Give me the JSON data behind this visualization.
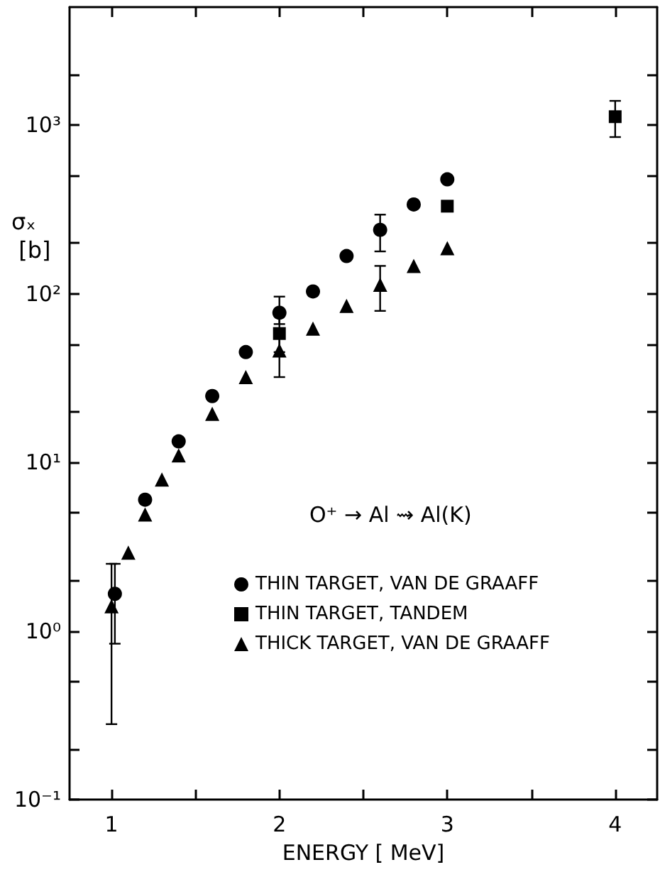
{
  "chart_data": {
    "type": "scatter",
    "xlabel": "ENERGY [ MeV]",
    "ylabel": "σₓ [b]",
    "annotations": [
      "O⁺ → Al ⇝ Al(K)"
    ],
    "log": "y",
    "grid": false,
    "legend": "right",
    "xlim": [
      0.75,
      4.25
    ],
    "xticks": [
      1,
      {
        "value": 1.5,
        "label": null
      },
      2,
      {
        "value": 2.5,
        "label": null
      },
      3,
      {
        "value": 3.5,
        "label": null
      },
      4
    ],
    "ylim": [
      0.1,
      5000
    ],
    "yticks": [
      {
        "value": 0.1,
        "label": "10⁻¹"
      },
      {
        "value": 0.2,
        "label": null
      },
      {
        "value": 0.5,
        "label": null
      },
      {
        "value": 1,
        "label": "10⁰"
      },
      {
        "value": 2,
        "label": null
      },
      {
        "value": 5,
        "label": null
      },
      {
        "value": 10,
        "label": "10¹"
      },
      {
        "value": 20,
        "label": null
      },
      {
        "value": 50,
        "label": null
      },
      {
        "value": 100,
        "label": "10²"
      },
      {
        "value": 200,
        "label": null
      },
      {
        "value": 500,
        "label": null
      },
      {
        "value": 1000,
        "label": "10³"
      },
      {
        "value": 2000,
        "label": null
      }
    ],
    "series": [
      {
        "name": "THIN TARGET, VAN DE GRAAFF",
        "color": "#000000",
        "marker": "circle",
        "x": [
          1.02,
          1.2,
          1.4,
          1.6,
          1.8,
          2.0,
          2.2,
          2.4,
          2.6,
          2.8,
          3.0
        ],
        "values": [
          1.66,
          6.0,
          13.3,
          24.7,
          45,
          77,
          103,
          167,
          239,
          338,
          476
        ],
        "errors": [
          [
            0.84,
            2.5
          ],
          null,
          null,
          null,
          null,
          [
            66,
            96
          ],
          null,
          null,
          [
            178,
            294
          ],
          null,
          null
        ]
      },
      {
        "name": "THIN TARGET, TANDEM",
        "color": "#000000",
        "marker": "square",
        "x": [
          2.0,
          3.0,
          4.0
        ],
        "values": [
          58,
          330,
          1120
        ],
        "errors": [
          [
            45,
            74
          ],
          null,
          [
            848,
            1390
          ]
        ]
      },
      {
        "name": "THICK TARGET, VAN DE GRAAFF",
        "color": "#000000",
        "marker": "triangle",
        "x": [
          1.0,
          1.1,
          1.2,
          1.3,
          1.4,
          1.6,
          1.8,
          2.0,
          2.2,
          2.4,
          2.6,
          2.8,
          3.0
        ],
        "values": [
          1.4,
          2.91,
          4.9,
          7.9,
          11,
          19.4,
          32,
          46,
          62,
          84.5,
          113,
          146,
          186
        ],
        "errors": [
          [
            0.28,
            2.5
          ],
          null,
          null,
          null,
          null,
          null,
          null,
          [
            32,
            60
          ],
          null,
          null,
          [
            79,
            146
          ],
          null,
          null
        ]
      }
    ]
  }
}
